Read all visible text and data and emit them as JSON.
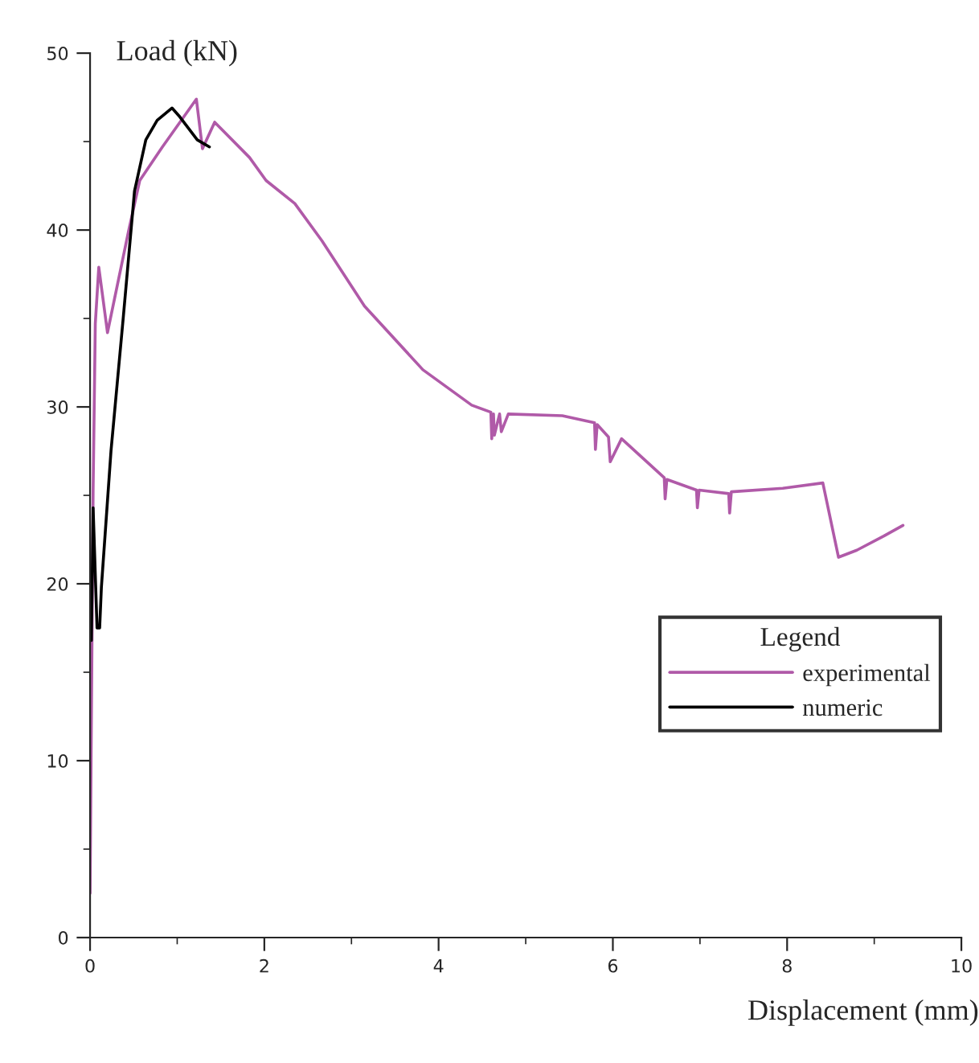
{
  "chart_data": {
    "type": "line",
    "xlabel": "Displacement (mm)",
    "ylabel": "Load (kN)",
    "legend_title": "Legend",
    "xlim": [
      0,
      10
    ],
    "xticks": [
      0,
      2,
      4,
      6,
      8,
      10
    ],
    "ylim": [
      0,
      50
    ],
    "yticks": [
      0,
      10,
      20,
      30,
      40,
      50
    ],
    "grid": false,
    "legend": "right",
    "marker": "none",
    "line_style": "solid",
    "series": [
      {
        "name": "experimental",
        "color": "#b05aa8",
        "x": [
          0.0,
          0.035,
          0.06,
          0.1,
          0.2,
          0.44,
          0.57,
          0.83,
          1.22,
          1.29,
          1.43,
          1.83,
          2.02,
          2.35,
          2.66,
          3.15,
          3.82,
          4.38,
          4.6,
          4.61,
          4.63,
          4.64,
          4.7,
          4.72,
          4.8,
          5.42,
          5.79,
          5.8,
          5.82,
          5.95,
          5.97,
          6.1,
          6.59,
          6.6,
          6.62,
          6.96,
          6.97,
          6.99,
          7.33,
          7.34,
          7.36,
          7.95,
          8.41,
          8.59,
          8.8,
          9.11,
          9.33
        ],
        "values": [
          2.5,
          25.3,
          34.7,
          37.9,
          34.2,
          39.9,
          42.8,
          44.7,
          47.4,
          44.6,
          46.1,
          44.1,
          42.8,
          41.5,
          39.4,
          35.7,
          32.1,
          30.1,
          29.7,
          28.2,
          29.6,
          28.4,
          29.6,
          28.6,
          29.6,
          29.5,
          29.1,
          27.6,
          29.0,
          28.3,
          26.9,
          28.2,
          26.0,
          24.8,
          25.9,
          25.3,
          24.3,
          25.3,
          25.1,
          24.0,
          25.2,
          25.4,
          25.7,
          21.5,
          21.9,
          22.7,
          23.3
        ]
      },
      {
        "name": "numeric",
        "color": "#000000",
        "x": [
          0.015,
          0.035,
          0.08,
          0.11,
          0.13,
          0.24,
          0.38,
          0.51,
          0.64,
          0.77,
          0.94,
          1.03,
          1.23,
          1.37
        ],
        "values": [
          16.8,
          24.3,
          17.5,
          17.5,
          19.8,
          27.5,
          35.0,
          42.2,
          45.1,
          46.2,
          46.9,
          46.4,
          45.1,
          44.7
        ]
      }
    ]
  }
}
